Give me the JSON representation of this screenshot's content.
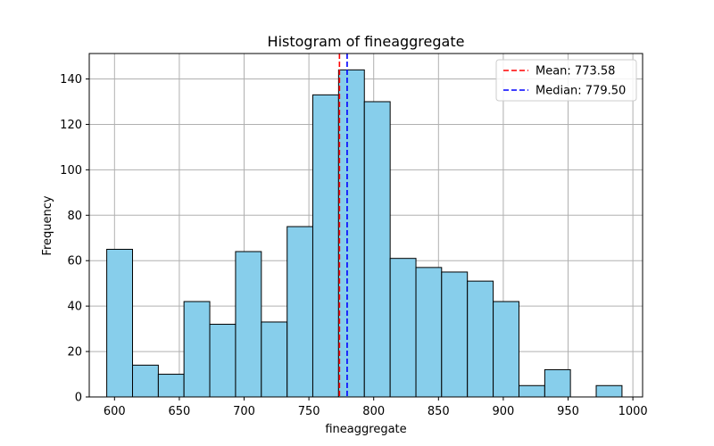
{
  "chart_data": {
    "type": "bar",
    "title": "Histogram of fineaggregate",
    "xlabel": "fineaggregate",
    "ylabel": "Frequency",
    "xlim": [
      580.5,
      1007.5
    ],
    "ylim": [
      0,
      151.2
    ],
    "bin_edges": [
      594.0,
      613.9,
      633.8,
      653.6,
      673.5,
      693.4,
      713.3,
      733.2,
      753.0,
      772.9,
      792.8,
      812.7,
      832.6,
      852.4,
      872.3,
      892.2,
      912.1,
      932.0,
      951.8,
      971.7,
      991.6
    ],
    "counts": [
      65,
      14,
      10,
      42,
      32,
      64,
      33,
      75,
      133,
      144,
      130,
      61,
      57,
      55,
      51,
      42,
      5,
      12,
      0,
      5
    ],
    "x_ticks": [
      600,
      650,
      700,
      750,
      800,
      850,
      900,
      950,
      1000
    ],
    "x_tick_labels": [
      "600",
      "650",
      "700",
      "750",
      "800",
      "850",
      "900",
      "950",
      "1000"
    ],
    "y_ticks": [
      0,
      20,
      40,
      60,
      80,
      100,
      120,
      140
    ],
    "y_tick_labels": [
      "0",
      "20",
      "40",
      "60",
      "80",
      "100",
      "120",
      "140"
    ],
    "grid": true,
    "bar_color": "#87ceeb",
    "bar_edge_color": "#000000",
    "reference_lines": [
      {
        "name": "Mean: 773.58",
        "value": 773.58,
        "color": "#ff0000",
        "style": "dashed"
      },
      {
        "name": "Median: 779.50",
        "value": 779.5,
        "color": "#0000ff",
        "style": "dashed"
      }
    ],
    "legend_position": "top-right"
  }
}
